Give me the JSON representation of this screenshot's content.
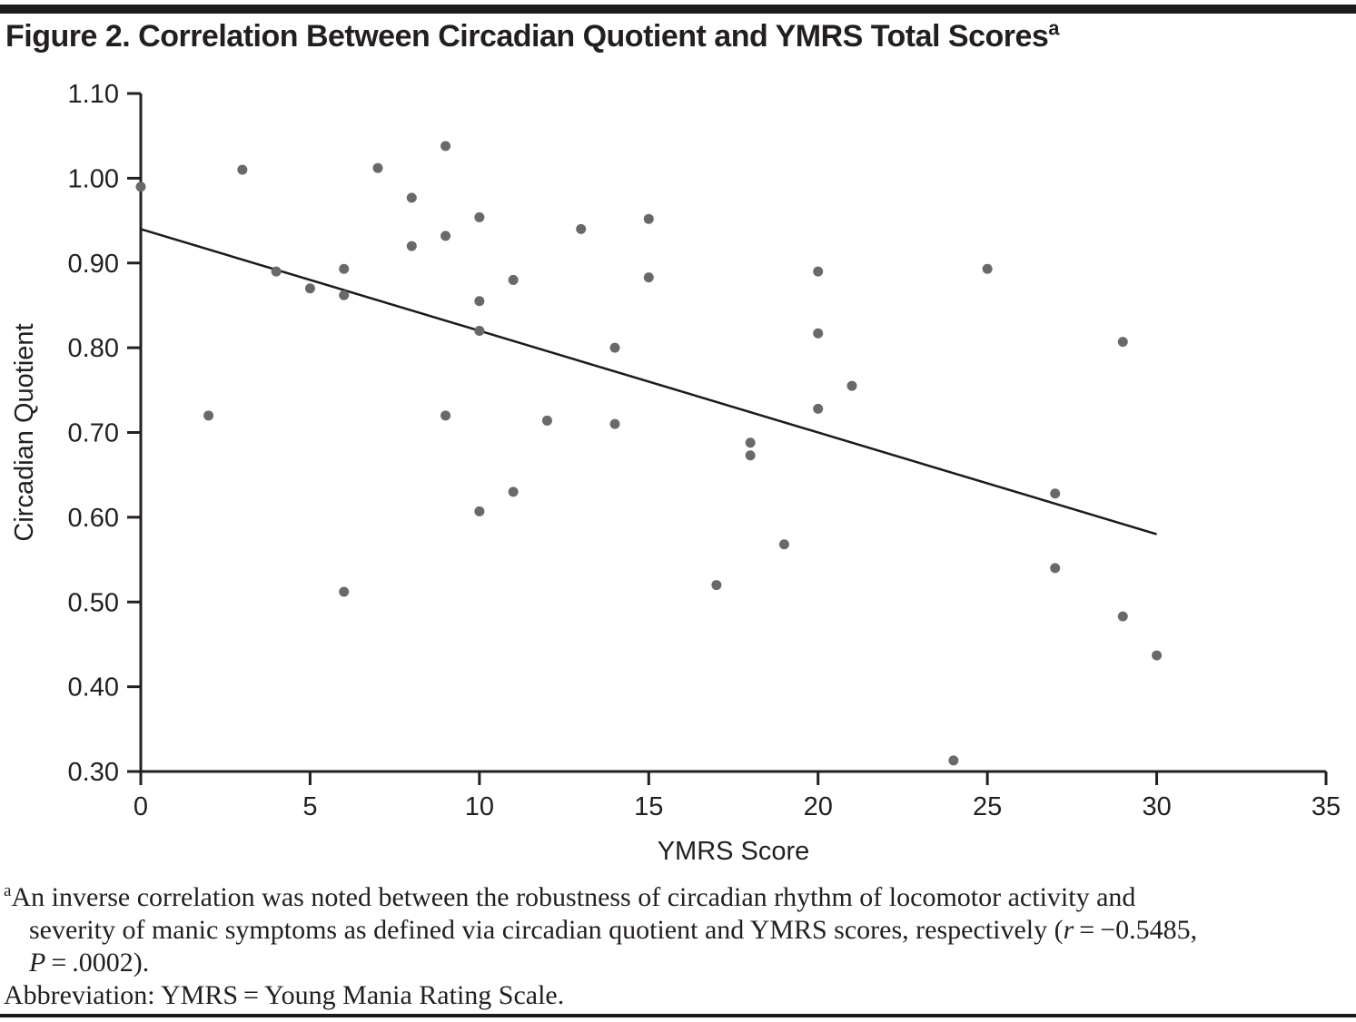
{
  "figure": {
    "title": "Figure 2. Correlation Between Circadian Quotient and YMRS Total Scores",
    "title_superscript": "a"
  },
  "chart_data": {
    "type": "scatter",
    "title": "Correlation Between Circadian Quotient and YMRS Total Scores",
    "xlabel": "YMRS Score",
    "ylabel": "Circadian Quotient",
    "xlim": [
      0,
      35
    ],
    "ylim": [
      0.3,
      1.1
    ],
    "x_ticks": [
      0,
      5,
      10,
      15,
      20,
      25,
      30,
      35
    ],
    "y_ticks": [
      0.3,
      0.4,
      0.5,
      0.6,
      0.7,
      0.8,
      0.9,
      1.0,
      1.1
    ],
    "grid": false,
    "legend": "none",
    "point_color": "#696969",
    "axis_color": "#231f20",
    "points": [
      [
        0,
        0.99
      ],
      [
        2,
        0.72
      ],
      [
        3,
        1.01
      ],
      [
        4,
        0.89
      ],
      [
        5,
        0.87
      ],
      [
        6,
        0.893
      ],
      [
        6,
        0.862
      ],
      [
        6,
        0.512
      ],
      [
        7,
        1.012
      ],
      [
        8,
        0.977
      ],
      [
        8,
        0.92
      ],
      [
        9,
        1.038
      ],
      [
        9,
        0.932
      ],
      [
        9,
        0.72
      ],
      [
        10,
        0.954
      ],
      [
        10,
        0.855
      ],
      [
        10,
        0.82
      ],
      [
        10,
        0.607
      ],
      [
        11,
        0.88
      ],
      [
        11,
        0.63
      ],
      [
        12,
        0.714
      ],
      [
        13,
        0.94
      ],
      [
        14,
        0.8
      ],
      [
        14,
        0.71
      ],
      [
        15,
        0.952
      ],
      [
        15,
        0.883
      ],
      [
        17,
        0.52
      ],
      [
        18,
        0.688
      ],
      [
        18,
        0.673
      ],
      [
        19,
        0.568
      ],
      [
        20,
        0.89
      ],
      [
        20,
        0.817
      ],
      [
        20,
        0.728
      ],
      [
        21,
        0.755
      ],
      [
        24,
        0.313
      ],
      [
        25,
        0.893
      ],
      [
        27,
        0.628
      ],
      [
        27,
        0.54
      ],
      [
        29,
        0.807
      ],
      [
        29,
        0.483
      ],
      [
        30,
        0.437
      ]
    ],
    "trendline": {
      "x1": 0,
      "y1": 0.94,
      "x2": 30,
      "y2": 0.58
    },
    "r_value": "−0.5485",
    "p_value": ".0002"
  },
  "footnotes": {
    "sup": "a",
    "line1": "An inverse correlation was noted between the robustness of circadian rhythm of locomotor activity and",
    "line2_pre": "severity of manic symptoms as defined via circadian quotient and YMRS scores, respectively (",
    "line2_italic": "r",
    "line2_post": " = −0.5485,",
    "line3_italic": "P",
    "line3_post": " = .0002).",
    "line4": "Abbreviation: YMRS = Young Mania Rating Scale."
  }
}
